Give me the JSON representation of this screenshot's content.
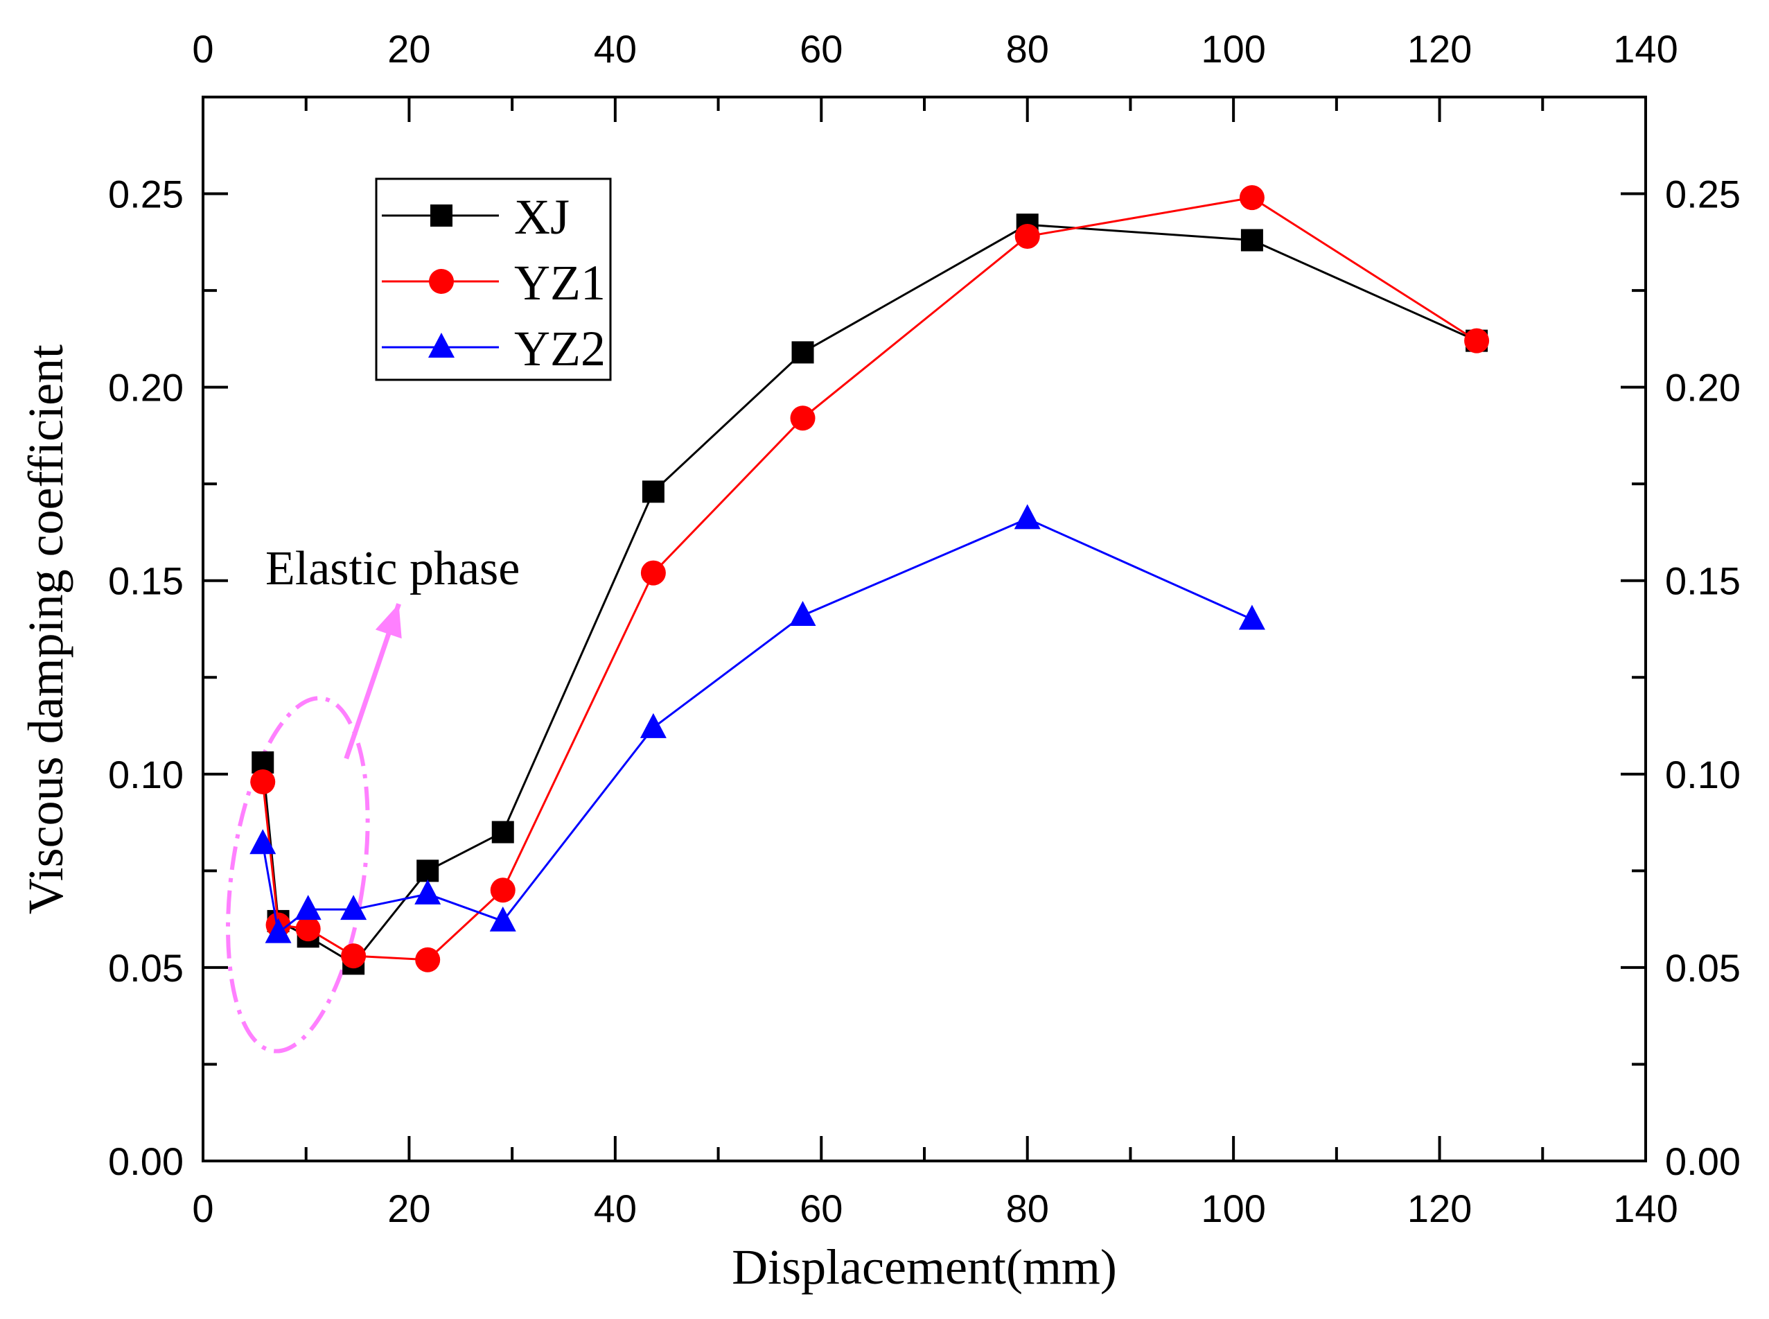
{
  "chart_data": {
    "type": "line",
    "xlabel": "Displacement(mm)",
    "ylabel": "Viscous damping coefficient",
    "xlim": [
      0,
      140
    ],
    "ylim": [
      0.0,
      0.275
    ],
    "x_ticks": [
      "0",
      "20",
      "40",
      "60",
      "80",
      "100",
      "120",
      "140"
    ],
    "y_ticks": [
      "0.00",
      "0.05",
      "0.10",
      "0.15",
      "0.20",
      "0.25"
    ],
    "grid": false,
    "legend_position": "top-left",
    "series": [
      {
        "name": "XJ",
        "color": "#000000",
        "marker": "square",
        "points": [
          [
            5.8,
            0.103
          ],
          [
            7.3,
            0.062
          ],
          [
            10.2,
            0.058
          ],
          [
            14.6,
            0.051
          ],
          [
            21.8,
            0.075
          ],
          [
            29.1,
            0.085
          ],
          [
            43.7,
            0.173
          ],
          [
            58.2,
            0.209
          ],
          [
            80.0,
            0.242
          ],
          [
            101.8,
            0.238
          ],
          [
            123.6,
            0.212
          ]
        ]
      },
      {
        "name": "YZ1",
        "color": "#ff0000",
        "marker": "circle",
        "points": [
          [
            5.8,
            0.098
          ],
          [
            7.3,
            0.061
          ],
          [
            10.2,
            0.06
          ],
          [
            14.6,
            0.053
          ],
          [
            21.8,
            0.052
          ],
          [
            29.1,
            0.07
          ],
          [
            43.7,
            0.152
          ],
          [
            58.2,
            0.192
          ],
          [
            80.0,
            0.239
          ],
          [
            101.8,
            0.249
          ],
          [
            123.6,
            0.212
          ]
        ]
      },
      {
        "name": "YZ2",
        "color": "#0000ff",
        "marker": "triangle",
        "points": [
          [
            5.8,
            0.082
          ],
          [
            7.3,
            0.059
          ],
          [
            10.2,
            0.065
          ],
          [
            14.6,
            0.065
          ],
          [
            21.8,
            0.069
          ],
          [
            29.1,
            0.062
          ],
          [
            43.7,
            0.112
          ],
          [
            58.2,
            0.141
          ],
          [
            80.0,
            0.166
          ],
          [
            101.8,
            0.14
          ]
        ]
      }
    ],
    "annotation": {
      "text": "Elastic phase",
      "color": "#ff80ff",
      "ellipse_center": [
        9.2,
        0.074
      ],
      "ellipse_radius": [
        6.4,
        0.046
      ],
      "arrow_from": [
        13.9,
        0.104
      ],
      "arrow_to": [
        19.0,
        0.144
      ]
    }
  }
}
